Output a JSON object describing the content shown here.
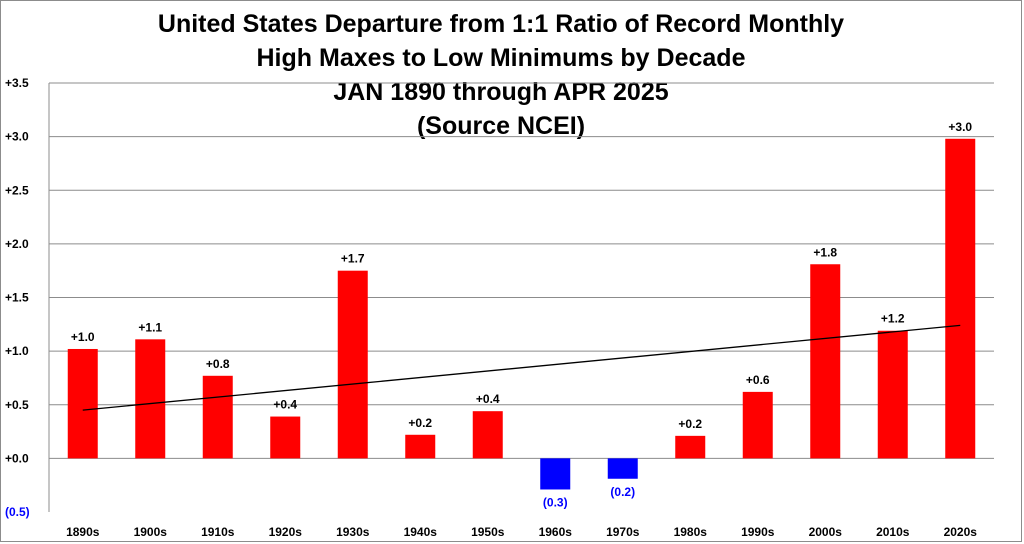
{
  "chart_data": {
    "type": "bar",
    "title_lines": [
      "United States Departure from 1:1 Ratio of Record Monthly",
      "High Maxes to Low Minimums by Decade",
      "JAN 1890 through APR 2025",
      "(Source NCEI)"
    ],
    "xlabel": "",
    "ylabel": "",
    "categories": [
      "1890s",
      "1900s",
      "1910s",
      "1920s",
      "1930s",
      "1940s",
      "1950s",
      "1960s",
      "1970s",
      "1980s",
      "1990s",
      "2000s",
      "2010s",
      "2020s"
    ],
    "values": [
      1.02,
      1.11,
      0.77,
      0.39,
      1.75,
      0.22,
      0.44,
      -0.29,
      -0.19,
      0.21,
      0.62,
      1.81,
      1.19,
      2.98
    ],
    "data_labels": [
      "+1.0",
      "+1.1",
      "+0.8",
      "+0.4",
      "+1.7",
      "+0.2",
      "+0.4",
      "(0.3)",
      "(0.2)",
      "+0.2",
      "+0.6",
      "+1.8",
      "+1.2",
      "+3.0"
    ],
    "y_ticks": [
      -0.5,
      0.0,
      0.5,
      1.0,
      1.5,
      2.0,
      2.5,
      3.0,
      3.5
    ],
    "y_tick_labels": [
      "(0.5)",
      "+0.0",
      "+0.5",
      "+1.0",
      "+1.5",
      "+2.0",
      "+2.5",
      "+3.0",
      "+3.5"
    ],
    "ylim": [
      -0.5,
      3.5
    ],
    "grid": true,
    "legend": "none",
    "trendline": {
      "type": "linear",
      "start": 0.45,
      "end": 1.24
    },
    "colors": {
      "positive": "#ff0000",
      "negative": "#0000ff",
      "negative_label": "#0000ff",
      "positive_label": "#000000",
      "gridline": "#8c8c8c",
      "trendline": "#000000"
    }
  }
}
